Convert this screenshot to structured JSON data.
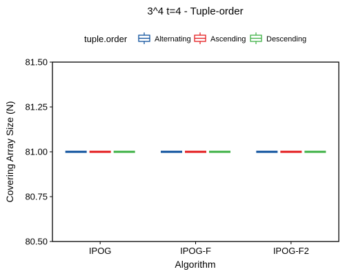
{
  "chart_data": {
    "type": "boxplot",
    "title": "3^4 t=4 - Tuple-order",
    "xlabel": "Algorithm",
    "ylabel": "Covering Array Size (N)",
    "categories": [
      "IPOG",
      "IPOG-F",
      "IPOG-F2"
    ],
    "ylim": [
      80.5,
      81.5
    ],
    "yticks": [
      80.5,
      80.75,
      81.0,
      81.25,
      81.5
    ],
    "ytick_labels": [
      "80.50",
      "80.75",
      "81.00",
      "81.25",
      "81.50"
    ],
    "legend": {
      "title": "tuple.order",
      "position": "top",
      "entries": [
        "Alternating",
        "Ascending",
        "Descending"
      ]
    },
    "series": [
      {
        "name": "Alternating",
        "color": "#0b4f9c",
        "values": [
          81,
          81,
          81
        ]
      },
      {
        "name": "Ascending",
        "color": "#e31a1c",
        "values": [
          81,
          81,
          81
        ]
      },
      {
        "name": "Descending",
        "color": "#3cb043",
        "values": [
          81,
          81,
          81
        ]
      }
    ],
    "grid": false
  }
}
